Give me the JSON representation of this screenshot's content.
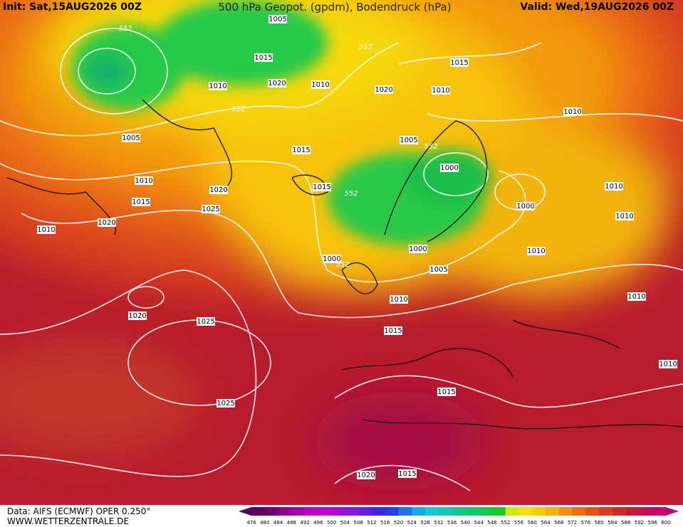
{
  "header": {
    "init": "Init: Sat,15AUG2026 00Z",
    "title": "500 hPa Geopot. (gpdm), Bodendruck (hPa)",
    "valid": "Valid: Wed,19AUG2026 00Z"
  },
  "map": {
    "labels": [
      552,
      1005,
      552,
      1015,
      1015,
      1010,
      1020,
      1010,
      1020,
      1010,
      552,
      1010,
      1005,
      1005,
      552,
      1015,
      1000,
      1010,
      1015,
      1020,
      552,
      1010,
      1015,
      1000,
      1025,
      1010,
      1020,
      1010,
      1000,
      1010,
      1000,
      552,
      1005,
      1010,
      1010,
      1020,
      1025,
      1015,
      1010,
      1015,
      1025,
      1020,
      1015
    ]
  },
  "legend": {
    "levels": [
      476,
      480,
      484,
      488,
      492,
      496,
      500,
      504,
      508,
      512,
      516,
      520,
      524,
      528,
      532,
      536,
      540,
      544,
      548,
      552,
      556,
      560,
      564,
      568,
      572,
      576,
      580,
      584,
      588,
      592,
      596,
      600
    ]
  },
  "footer": {
    "source": "Data: AIFS (ECMWF) OPER 0.250°",
    "website": "WWW.WETTERZENTRALE.DE"
  }
}
